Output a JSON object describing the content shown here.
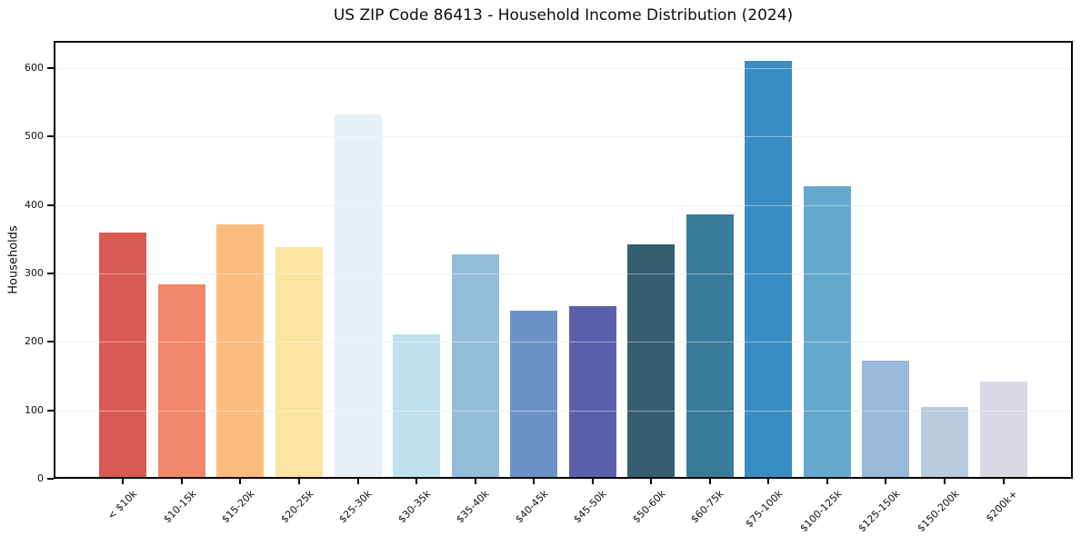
{
  "chart_data": {
    "type": "bar",
    "title": "US ZIP Code 86413 - Household Income Distribution (2024)",
    "xlabel": "",
    "ylabel": "Households",
    "categories": [
      "< $10k",
      "$10-15k",
      "$15-20k",
      "$20-25k",
      "$25-30k",
      "$30-35k",
      "$35-40k",
      "$40-45k",
      "$45-50k",
      "$50-60k",
      "$60-75k",
      "$75-100k",
      "$100-125k",
      "$125-150k",
      "$150-200k",
      "$200k+"
    ],
    "values": [
      360,
      284,
      372,
      339,
      532,
      211,
      328,
      246,
      253,
      342,
      386,
      611,
      427,
      173,
      105,
      142
    ],
    "bar_colors": [
      "#d95a55",
      "#f1876a",
      "#fbbc7e",
      "#fce4a0",
      "#e5f1f6",
      "#bfe0ed",
      "#94bddb",
      "#6d93c6",
      "#5c60ac",
      "#355e70",
      "#397b9a",
      "#388ec2",
      "#64a9cd",
      "#98b9d9",
      "#b8c9e0",
      "#d8d9e5"
    ],
    "ylim": [
      0,
      640
    ],
    "yticks": [
      0,
      100,
      200,
      300,
      400,
      500,
      600
    ],
    "grid": "horizontal",
    "legend": "none",
    "background": "#ffffff",
    "axis_color": "#000000",
    "grid_color": "#e9e9ef",
    "text_color": "#111111"
  }
}
